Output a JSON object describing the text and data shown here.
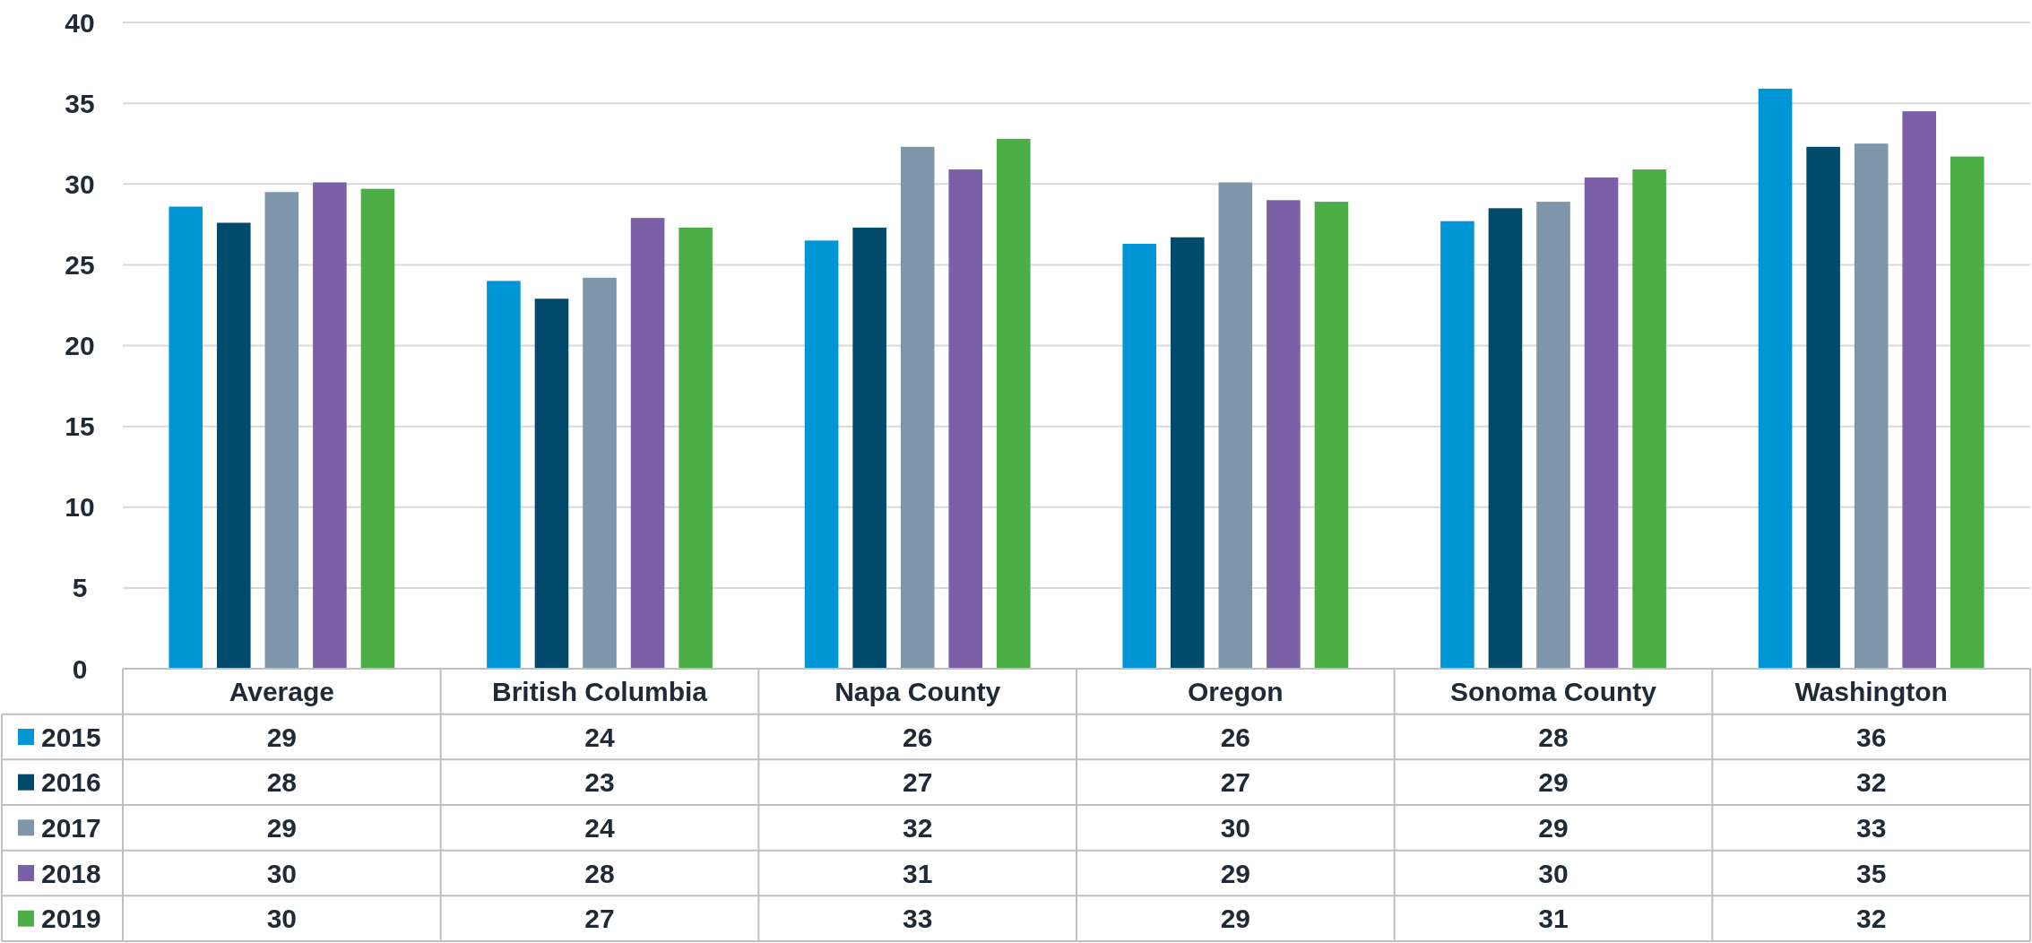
{
  "chart_data": {
    "type": "bar",
    "categories": [
      "Average",
      "British Columbia",
      "Napa County",
      "Oregon",
      "Sonoma County",
      "Washington"
    ],
    "series": [
      {
        "name": "2015",
        "color": "#0096d6",
        "values": [
          28.6,
          24.0,
          26.5,
          26.3,
          27.7,
          35.9
        ],
        "value_labels": [
          "29",
          "24",
          "26",
          "26",
          "28",
          "36"
        ]
      },
      {
        "name": "2016",
        "color": "#004b6b",
        "values": [
          27.6,
          22.9,
          27.3,
          26.7,
          28.5,
          32.3
        ],
        "value_labels": [
          "28",
          "23",
          "27",
          "27",
          "29",
          "32"
        ]
      },
      {
        "name": "2017",
        "color": "#7f96aa",
        "values": [
          29.5,
          24.2,
          32.3,
          30.1,
          28.9,
          32.5
        ],
        "value_labels": [
          "29",
          "24",
          "32",
          "30",
          "29",
          "33"
        ]
      },
      {
        "name": "2018",
        "color": "#7b60a8",
        "values": [
          30.1,
          27.9,
          30.9,
          29.0,
          30.4,
          34.5
        ],
        "value_labels": [
          "30",
          "28",
          "31",
          "29",
          "30",
          "35"
        ]
      },
      {
        "name": "2019",
        "color": "#4caf46",
        "values": [
          29.7,
          27.3,
          32.8,
          28.9,
          30.9,
          31.7
        ],
        "value_labels": [
          "30",
          "27",
          "33",
          "29",
          "31",
          "32"
        ]
      }
    ],
    "ylim": [
      0,
      40
    ],
    "yticks": [
      0,
      5,
      10,
      15,
      20,
      25,
      30,
      35,
      40
    ],
    "grid": "y",
    "legend": "bottom left"
  }
}
